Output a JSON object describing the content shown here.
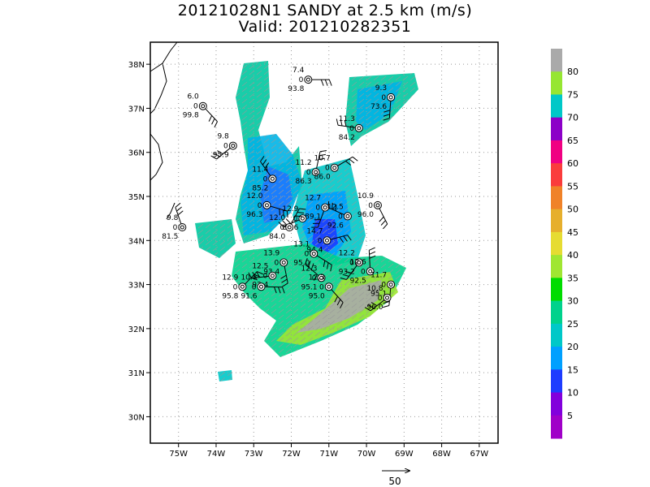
{
  "title": "20121028N1 SANDY at 2.5 km (m/s)",
  "subtitle": "Valid: 201210282351",
  "map": {
    "lon_range": [
      -75.75,
      -66.5
    ],
    "lat_range": [
      29.4,
      38.5
    ],
    "lon_ticks": [
      {
        "v": -75,
        "label": "75W"
      },
      {
        "v": -74,
        "label": "74W"
      },
      {
        "v": -73,
        "label": "73W"
      },
      {
        "v": -72,
        "label": "72W"
      },
      {
        "v": -71,
        "label": "71W"
      },
      {
        "v": -70,
        "label": "70W"
      },
      {
        "v": -69,
        "label": "69W"
      },
      {
        "v": -68,
        "label": "68W"
      },
      {
        "v": -67,
        "label": "67W"
      }
    ],
    "lat_ticks": [
      {
        "v": 30,
        "label": "30N"
      },
      {
        "v": 31,
        "label": "31N"
      },
      {
        "v": 32,
        "label": "32N"
      },
      {
        "v": 33,
        "label": "33N"
      },
      {
        "v": 34,
        "label": "34N"
      },
      {
        "v": 35,
        "label": "35N"
      },
      {
        "v": 36,
        "label": "36N"
      },
      {
        "v": 37,
        "label": "37N"
      },
      {
        "v": 38,
        "label": "38N"
      }
    ],
    "grid": "dotted"
  },
  "colorbar": {
    "labels": [
      "5",
      "10",
      "15",
      "20",
      "25",
      "30",
      "35",
      "40",
      "45",
      "50",
      "55",
      "60",
      "65",
      "70",
      "75",
      "80"
    ],
    "colors": [
      "#a000c8",
      "#8200dc",
      "#1e3cff",
      "#00a0ff",
      "#00c8c8",
      "#00d28c",
      "#00dc00",
      "#a0e632",
      "#e6dc32",
      "#e6af2d",
      "#f08228",
      "#fa3c3c",
      "#f00082",
      "#8c00c8",
      "#00c8c8",
      "#96e632",
      "#aaaaaa"
    ]
  },
  "legend": {
    "reference_vector_label": "50"
  },
  "stations": [
    {
      "lon": -71.55,
      "lat": 37.65,
      "top": "7.4",
      "mid": "0",
      "bot": "93.8"
    },
    {
      "lon": -74.35,
      "lat": 37.05,
      "top": "6.0",
      "mid": "0",
      "bot": "99.8"
    },
    {
      "lon": -69.35,
      "lat": 37.25,
      "top": "9.3",
      "mid": "0",
      "bot": "73.6"
    },
    {
      "lon": -73.55,
      "lat": 36.15,
      "top": "9.8",
      "mid": "0",
      "bot": "95.9"
    },
    {
      "lon": -70.2,
      "lat": 36.55,
      "top": "11.3",
      "mid": "0",
      "bot": "84.2"
    },
    {
      "lon": -72.5,
      "lat": 35.4,
      "top": "11.4",
      "mid": "0",
      "bot": "85.2"
    },
    {
      "lon": -71.35,
      "lat": 35.55,
      "top": "11.2",
      "mid": "0",
      "bot": "86.3"
    },
    {
      "lon": -70.85,
      "lat": 35.65,
      "top": "10.7",
      "mid": "0",
      "bot": "86.0"
    },
    {
      "lon": -72.65,
      "lat": 34.8,
      "top": "12.0",
      "mid": "0",
      "bot": "96.3"
    },
    {
      "lon": -69.7,
      "lat": 34.8,
      "top": "10.9",
      "mid": "0",
      "bot": "96.0"
    },
    {
      "lon": -71.1,
      "lat": 34.75,
      "top": "12.7",
      "mid": "0",
      "bot": "89.1"
    },
    {
      "lon": -71.7,
      "lat": 34.5,
      "top": "12.9",
      "mid": "0",
      "bot": "88.6"
    },
    {
      "lon": -70.5,
      "lat": 34.55,
      "top": "12.5",
      "mid": "0",
      "bot": "92.6"
    },
    {
      "lon": -74.9,
      "lat": 34.3,
      "top": "9.8",
      "mid": "0",
      "bot": "81.5"
    },
    {
      "lon": -72.05,
      "lat": 34.3,
      "top": "12.0",
      "mid": "0",
      "bot": "84.0"
    },
    {
      "lon": -71.05,
      "lat": 34.0,
      "top": "14.7",
      "mid": "0",
      "bot": "94.4"
    },
    {
      "lon": -71.4,
      "lat": 33.7,
      "top": "13.1",
      "mid": "0",
      "bot": "95.0"
    },
    {
      "lon": -72.2,
      "lat": 33.5,
      "top": "13.9",
      "mid": "0",
      "bot": "93.4"
    },
    {
      "lon": -70.2,
      "lat": 33.5,
      "top": "12.2",
      "mid": "0",
      "bot": "93.2"
    },
    {
      "lon": -72.5,
      "lat": 33.2,
      "top": "12.5",
      "mid": "0",
      "bot": "93.4"
    },
    {
      "lon": -71.2,
      "lat": 33.15,
      "top": "12.3",
      "mid": "0",
      "bot": "95.1"
    },
    {
      "lon": -69.9,
      "lat": 33.3,
      "top": "12.6",
      "mid": "0",
      "bot": "92.5"
    },
    {
      "lon": -73.3,
      "lat": 32.95,
      "top": "12.9",
      "mid": "0",
      "bot": "95.8"
    },
    {
      "lon": -72.8,
      "lat": 32.95,
      "top": "10.8",
      "mid": "0",
      "bot": "91.6"
    },
    {
      "lon": -71.0,
      "lat": 32.95,
      "top": "12.3",
      "mid": "0",
      "bot": "95.0"
    },
    {
      "lon": -69.35,
      "lat": 33.0,
      "top": "11.7",
      "mid": "0",
      "bot": "95.1"
    },
    {
      "lon": -69.45,
      "lat": 32.7,
      "top": "10.8",
      "mid": "0",
      "bot": "96.0"
    }
  ]
}
